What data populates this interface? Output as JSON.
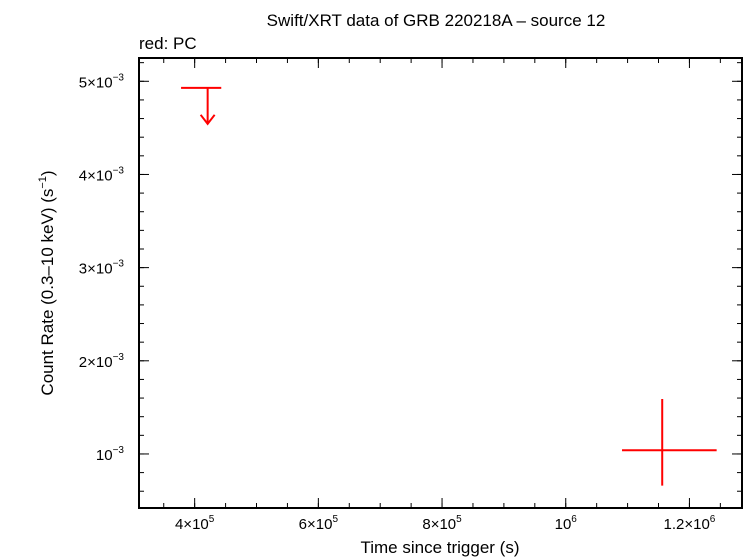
{
  "chart_data": {
    "type": "scatter",
    "title": "Swift/XRT data of GRB 220218A – source 12",
    "subtitle": "red: PC",
    "xlabel": "Time since trigger (s)",
    "ylabel_main": "Count Rate (0.3–10 keV) (s",
    "ylabel_exp": "−1",
    "ylabel_tail": ")",
    "xlim": [
      310000,
      1285000
    ],
    "ylim": [
      0.00042,
      0.00525
    ],
    "x_ticks": [
      {
        "value": 400000,
        "mantissa": "4×10",
        "exp": "5"
      },
      {
        "value": 600000,
        "mantissa": "6×10",
        "exp": "5"
      },
      {
        "value": 800000,
        "mantissa": "8×10",
        "exp": "5"
      },
      {
        "value": 1000000,
        "mantissa": "10",
        "exp": "6"
      },
      {
        "value": 1200000,
        "mantissa": "1.2×10",
        "exp": "6"
      }
    ],
    "y_ticks": [
      {
        "value": 0.001,
        "mantissa": "10",
        "exp": "−3"
      },
      {
        "value": 0.002,
        "mantissa": "2×10",
        "exp": "−3"
      },
      {
        "value": 0.003,
        "mantissa": "3×10",
        "exp": "−3"
      },
      {
        "value": 0.004,
        "mantissa": "4×10",
        "exp": "−3"
      },
      {
        "value": 0.005,
        "mantissa": "5×10",
        "exp": "−3"
      }
    ],
    "x_minor_step": 50000,
    "y_minor_step": 0.0002,
    "grid": false,
    "series": [
      {
        "mode": "PC",
        "color": "#ff0000",
        "points": [
          {
            "x": 421000,
            "y": 0.00493,
            "xerr_minus": 43000,
            "xerr_plus": 22000,
            "upper_limit": true
          },
          {
            "x": 1156000,
            "y": 0.00104,
            "xerr_minus": 65000,
            "xerr_plus": 88000,
            "yerr_minus": 0.00038,
            "yerr_plus": 0.00055,
            "upper_limit": false
          }
        ]
      }
    ]
  }
}
